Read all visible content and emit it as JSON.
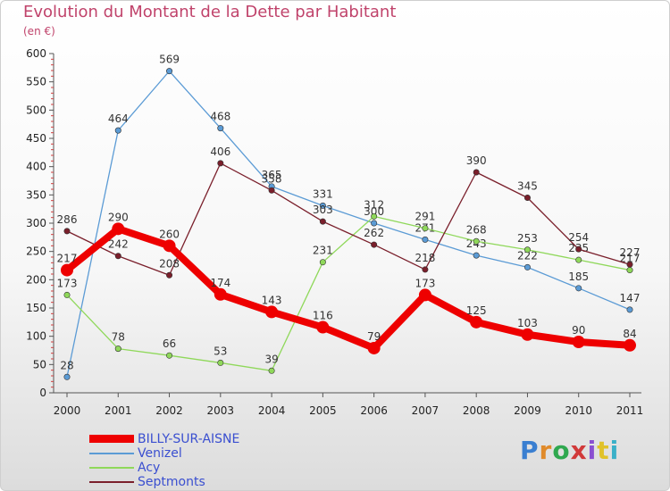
{
  "header": {
    "title": "Evolution du Montant de la Dette par Habitant",
    "unit": "(en €)"
  },
  "logo": {
    "text": "Proxiti",
    "colors": [
      "#3a7fd1",
      "#e08a2a",
      "#2fa84f",
      "#d13a3a",
      "#8a4fd1",
      "#e0c22a",
      "#3ab0c8"
    ]
  },
  "chart_data": {
    "type": "line",
    "x": [
      "2000",
      "2001",
      "2002",
      "2003",
      "2004",
      "2005",
      "2006",
      "2007",
      "2008",
      "2009",
      "2010",
      "2011"
    ],
    "ylim": [
      0,
      600
    ],
    "yticks": [
      0,
      50,
      100,
      150,
      200,
      250,
      300,
      350,
      400,
      450,
      500,
      550,
      600
    ],
    "grid": false,
    "legend_position": "bottom-left",
    "series": [
      {
        "name": "BILLY-SUR-AISNE",
        "color": "#ee0000",
        "width": 8,
        "values": [
          217,
          290,
          260,
          174,
          143,
          116,
          79,
          173,
          125,
          103,
          90,
          84
        ]
      },
      {
        "name": "Venizel",
        "color": "#5b9bd5",
        "values": [
          28,
          464,
          569,
          468,
          365,
          331,
          300,
          271,
          243,
          222,
          185,
          147
        ]
      },
      {
        "name": "Acy",
        "color": "#8fd85a",
        "values": [
          173,
          78,
          66,
          53,
          39,
          231,
          312,
          291,
          268,
          253,
          235,
          217
        ]
      },
      {
        "name": "Septmonts",
        "color": "#7a1f2b",
        "values": [
          286,
          242,
          208,
          406,
          358,
          303,
          262,
          218,
          390,
          345,
          254,
          227
        ]
      }
    ]
  }
}
